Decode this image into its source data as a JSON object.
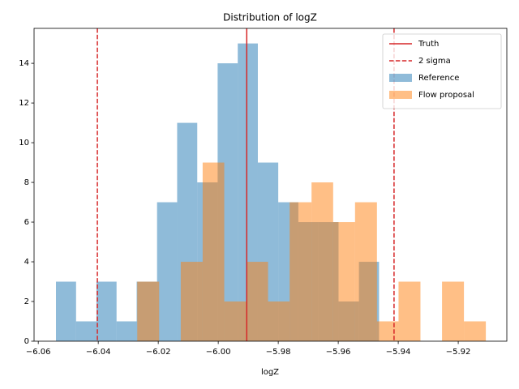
{
  "chart_data": {
    "type": "histogram",
    "title": "Distribution of logZ",
    "x_label": "logZ",
    "opacity": 0.5,
    "series": [
      {
        "name": "Reference",
        "color": "#1f77b4",
        "bins": [
          -6.0541,
          -6.0474,
          -6.0406,
          -6.0339,
          -6.0272,
          -6.0204,
          -6.0137,
          -6.007,
          -6.0002,
          -5.9935,
          -5.9868,
          -5.98,
          -5.9733,
          -5.9666,
          -5.9599,
          -5.9531,
          -5.9464
        ],
        "values": [
          3,
          1,
          3,
          1,
          3,
          7,
          11,
          8,
          14,
          15,
          9,
          7,
          6,
          6,
          2,
          4
        ]
      },
      {
        "name": "Flow proposal",
        "color": "#ff7f0e",
        "bins": [
          -6.027,
          -6.0197,
          -6.0125,
          -6.0052,
          -5.998,
          -5.9907,
          -5.9834,
          -5.9762,
          -5.9689,
          -5.9617,
          -5.9544,
          -5.9471,
          -5.9399,
          -5.9326,
          -5.9254,
          -5.9181,
          -5.9108
        ],
        "values": [
          3,
          0,
          4,
          9,
          2,
          4,
          2,
          7,
          8,
          6,
          7,
          1,
          3,
          0,
          3,
          1
        ]
      }
    ],
    "vlines": [
      {
        "name": "Truth",
        "color": "#d62728",
        "dashed": false,
        "values": [
          -5.9905
        ]
      },
      {
        "name": "2 sigma",
        "color": "#d62728",
        "dashed": true,
        "values": [
          -6.0403,
          -5.9414
        ]
      }
    ],
    "xlim": [
      -6.0614,
      -5.9038
    ],
    "ylim": [
      0,
      15.76
    ],
    "xticks": [
      {
        "value": -6.06,
        "label": "−6.06"
      },
      {
        "value": -6.04,
        "label": "−6.04"
      },
      {
        "value": -6.02,
        "label": "−6.02"
      },
      {
        "value": -6.0,
        "label": "−6.00"
      },
      {
        "value": -5.98,
        "label": "−5.98"
      },
      {
        "value": -5.96,
        "label": "−5.96"
      },
      {
        "value": -5.94,
        "label": "−5.94"
      },
      {
        "value": -5.92,
        "label": "−5.92"
      }
    ],
    "yticks": [
      0,
      2,
      4,
      6,
      8,
      10,
      12,
      14
    ],
    "legend": "upper right"
  }
}
